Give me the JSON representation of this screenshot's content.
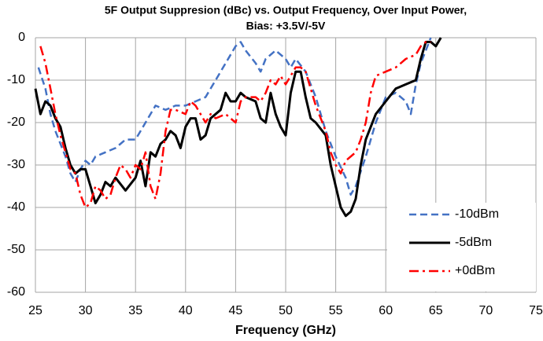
{
  "chart_data": {
    "type": "line",
    "title": [
      "5F Output Suppresion (dBc) vs. Output Frequency, Over Input Power,",
      "Bias: +3.5V/-5V"
    ],
    "x_label": "Frequency (GHz)",
    "xlim": [
      25,
      75
    ],
    "xticks": [
      25,
      30,
      35,
      40,
      45,
      50,
      55,
      60,
      65,
      70,
      75
    ],
    "ylim": [
      -60,
      0
    ],
    "yticks": [
      -60,
      -50,
      -40,
      -30,
      -20,
      -10,
      0
    ],
    "grid": true,
    "legend": "lower right",
    "series": [
      {
        "name": "-10dBm",
        "color": "#4472c4",
        "dash": "dashed",
        "x": [
          25.3,
          26,
          26.5,
          27,
          28,
          28.5,
          29,
          29.5,
          30,
          30.5,
          31,
          32,
          33,
          34,
          35,
          35.5,
          36,
          37,
          38,
          39,
          40,
          41,
          42,
          43,
          44,
          45,
          45.5,
          46,
          47,
          47.5,
          48,
          49,
          50,
          50.5,
          51,
          52,
          53,
          54,
          55,
          56,
          56.5,
          57,
          58,
          59,
          60,
          61,
          62,
          62.5,
          63,
          63.5,
          64,
          64.5
        ],
        "values": [
          -7,
          -12,
          -18,
          -22,
          -28,
          -32,
          -34,
          -31,
          -29,
          -30,
          -28,
          -27,
          -26,
          -24,
          -24,
          -22,
          -20,
          -16,
          -17,
          -16,
          -16,
          -15,
          -14,
          -10,
          -6,
          -2,
          -1,
          -3,
          -6,
          -8,
          -5,
          -3,
          -5,
          -7,
          -5,
          -8,
          -14,
          -22,
          -28,
          -33,
          -37,
          -35,
          -28,
          -20,
          -14,
          -13,
          -15,
          -18,
          -11,
          -6,
          -3,
          0
        ]
      },
      {
        "name": "-5dBm",
        "color": "#000000",
        "dash": "solid",
        "x": [
          25,
          25.5,
          26,
          26.5,
          27,
          27.5,
          28,
          28.5,
          29,
          29.5,
          30,
          30.5,
          31,
          31.5,
          32,
          32.5,
          33,
          34,
          35,
          35.5,
          36,
          36.5,
          37,
          37.5,
          38,
          38.5,
          39,
          39.5,
          40,
          40.5,
          41,
          41.5,
          42,
          42.5,
          43,
          43.5,
          44,
          44.5,
          45,
          45.5,
          46,
          47,
          47.5,
          48,
          48.5,
          49,
          49.5,
          50,
          50.5,
          51,
          51.5,
          52,
          52.5,
          53,
          54,
          54.5,
          55,
          55.5,
          56,
          56.5,
          57,
          57.5,
          58,
          59,
          60,
          61,
          62,
          63,
          63.5,
          64,
          64.5,
          65,
          65.5
        ],
        "values": [
          -12,
          -18,
          -15,
          -16,
          -19,
          -21,
          -26,
          -30,
          -32,
          -31,
          -31,
          -35,
          -39,
          -37,
          -34,
          -35,
          -33,
          -36,
          -33,
          -29,
          -35,
          -27,
          -28,
          -25,
          -24,
          -22,
          -23,
          -26,
          -21,
          -19,
          -19,
          -24,
          -23,
          -19,
          -18,
          -17,
          -13,
          -15,
          -15,
          -13,
          -14,
          -15,
          -19,
          -20,
          -13,
          -18,
          -21,
          -23,
          -13,
          -8,
          -8,
          -14,
          -19,
          -20,
          -23,
          -30,
          -35,
          -40,
          -42,
          -41,
          -38,
          -30,
          -24,
          -18,
          -15,
          -12,
          -11,
          -10,
          -5,
          -1,
          -1,
          -2,
          0
        ]
      },
      {
        "name": "+0dBm",
        "color": "#ff0000",
        "dash": "dashdot",
        "x": [
          25.5,
          26,
          26.5,
          27,
          27.5,
          28,
          28.5,
          29,
          29.5,
          30,
          30.5,
          31,
          31.5,
          32,
          32.5,
          33,
          33.5,
          34,
          34.5,
          35,
          35.5,
          36,
          36.5,
          37,
          37.5,
          38,
          38.5,
          39,
          40,
          40.5,
          41,
          42,
          42.5,
          43,
          44,
          44.5,
          45,
          45.5,
          46,
          47,
          47.5,
          48,
          48.5,
          49,
          49.5,
          50,
          50.5,
          51,
          51.5,
          52,
          53,
          54,
          54.5,
          55,
          55.5,
          56,
          57,
          57.5,
          58,
          58.5,
          59,
          60,
          61,
          61.5,
          62,
          63,
          63.5,
          64,
          64.5
        ],
        "values": [
          -2,
          -6,
          -12,
          -18,
          -23,
          -27,
          -31,
          -32,
          -37,
          -40,
          -39,
          -35,
          -36,
          -38,
          -37,
          -33,
          -30,
          -31,
          -33,
          -30,
          -31,
          -27,
          -35,
          -38,
          -32,
          -22,
          -17,
          -17,
          -18,
          -15,
          -16,
          -20,
          -18,
          -19,
          -18,
          -19,
          -20,
          -15,
          -14,
          -14,
          -15,
          -13,
          -10,
          -11,
          -9,
          -11,
          -9,
          -7,
          -7,
          -8,
          -16,
          -22,
          -27,
          -30,
          -32,
          -29,
          -27,
          -24,
          -20,
          -13,
          -9,
          -8,
          -7,
          -6,
          -5,
          -4,
          -2,
          -1,
          -1
        ]
      }
    ]
  }
}
